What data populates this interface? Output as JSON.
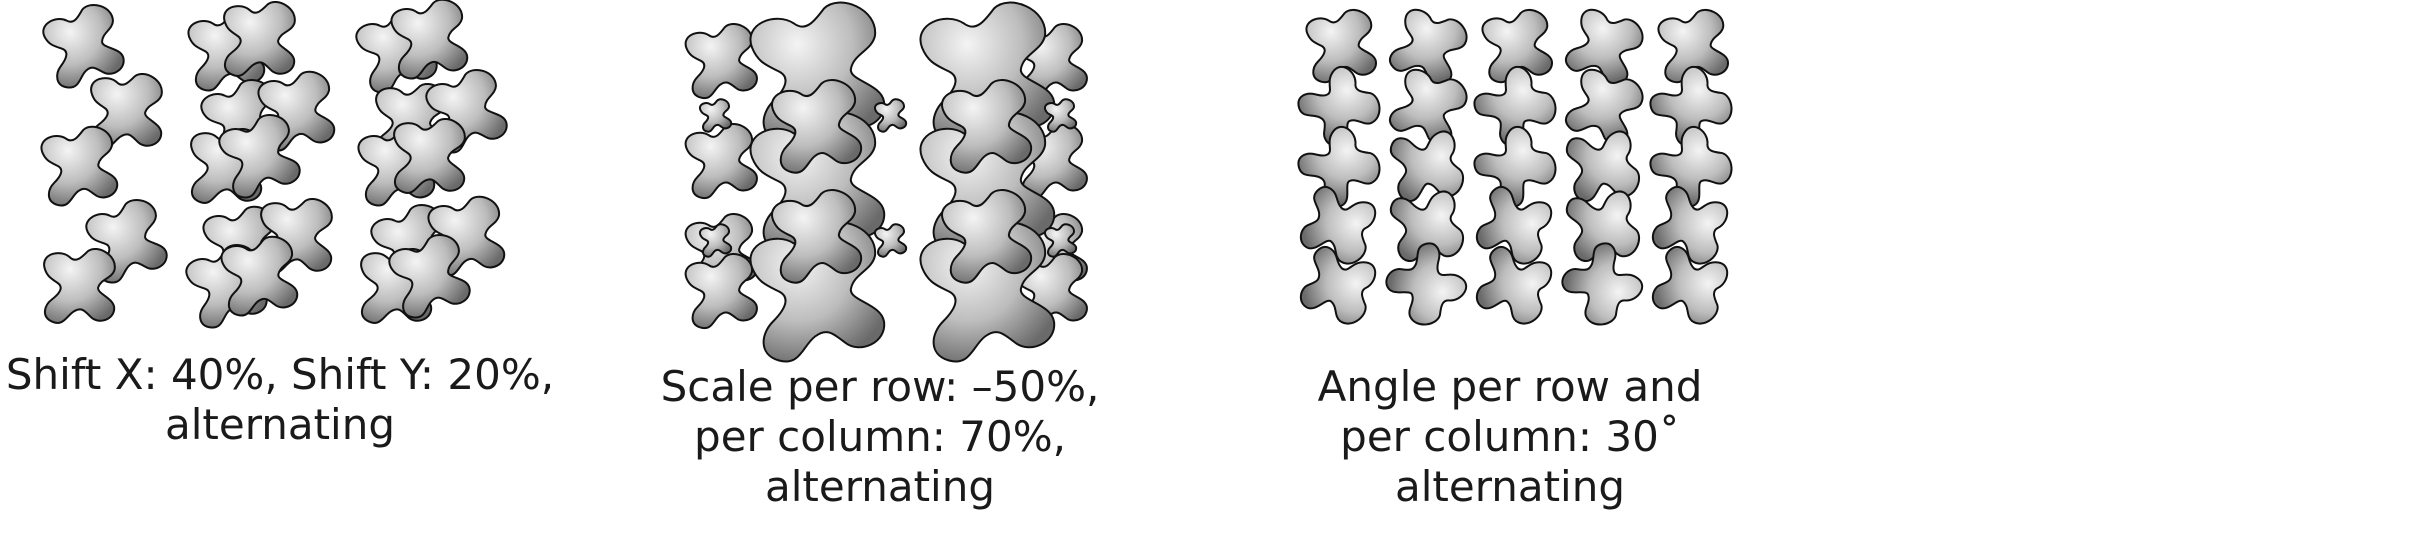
{
  "panels": [
    {
      "id": "shift",
      "caption_lines": [
        "Shift X: 40%,  Shift Y: 20%,",
        "alternating"
      ]
    },
    {
      "id": "scale",
      "caption_lines": [
        "Scale per row: –50%,",
        "per column: 70%,",
        "alternating"
      ]
    },
    {
      "id": "angle",
      "caption_lines": [
        "Angle per row and",
        "per column: 30˚",
        "alternating"
      ]
    }
  ],
  "colors": {
    "shape_light": "#f4f4f4",
    "shape_mid": "#bdbdbd",
    "shape_dark": "#6a6a6a",
    "outline": "#111111",
    "text": "#1a1a1a"
  }
}
